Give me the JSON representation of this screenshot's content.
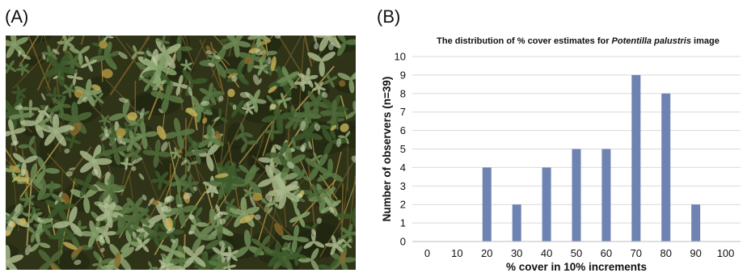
{
  "panels": {
    "a_label": "(A)",
    "b_label": "(B)"
  },
  "photo": {
    "description_icon": "photo-vegetation-plot",
    "ground_color": "#2f3318",
    "leaf_colors": [
      "#4f6b3a",
      "#6f8c57",
      "#8aa46f",
      "#3d5a2c",
      "#a9b98c",
      "#5c7a45"
    ],
    "dry_colors": [
      "#b79a43",
      "#8a6a2c",
      "#c8b35a"
    ],
    "stem_color": "#6b5a2a"
  },
  "chart_data": {
    "type": "bar",
    "title_prefix": "The distribution of % cover estimates for ",
    "title_species": "Potentilla palustris",
    "title_suffix": " image",
    "xlabel": "% cover in 10% increments",
    "ylabel": "Number of observers (n=39)",
    "categories": [
      "0",
      "10",
      "20",
      "30",
      "40",
      "50",
      "60",
      "70",
      "80",
      "90",
      "100"
    ],
    "values": [
      0,
      0,
      4,
      2,
      4,
      5,
      5,
      9,
      8,
      2,
      0
    ],
    "ylim": [
      0,
      10
    ],
    "yticks": [
      0,
      1,
      2,
      3,
      4,
      5,
      6,
      7,
      8,
      9,
      10
    ],
    "grid": true,
    "bar_color": "#6f83b2",
    "grid_color": "#d9d9d9"
  }
}
